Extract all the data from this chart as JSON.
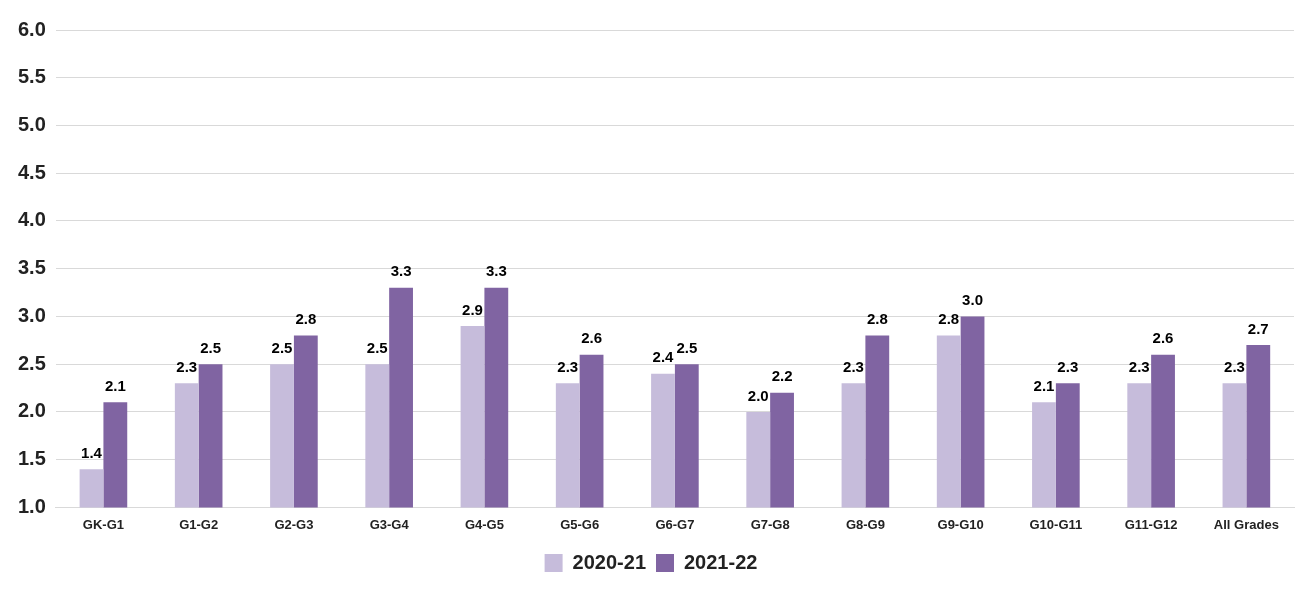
{
  "chart_data": {
    "type": "bar",
    "categories": [
      "GK-G1",
      "G1-G2",
      "G2-G3",
      "G3-G4",
      "G4-G5",
      "G5-G6",
      "G6-G7",
      "G7-G8",
      "G8-G9",
      "G9-G10",
      "G10-G11",
      "G11-G12",
      "All Grades"
    ],
    "series": [
      {
        "name": "2020-21",
        "color": "#c6bcdb",
        "values": [
          1.4,
          2.3,
          2.5,
          2.5,
          2.9,
          2.3,
          2.4,
          2.0,
          2.3,
          2.8,
          2.1,
          2.3,
          2.3
        ],
        "value_labels": [
          "1.4",
          "2.3",
          "2.5",
          "2.5",
          "2.9",
          "2.3",
          "2.4",
          "2.0",
          "2.3",
          "2.8",
          "2.1",
          "2.3",
          "2.3"
        ]
      },
      {
        "name": "2021-22",
        "color": "#8064a2",
        "values": [
          2.1,
          2.5,
          2.8,
          3.3,
          3.3,
          2.6,
          2.5,
          2.2,
          2.8,
          3.0,
          2.3,
          2.6,
          2.7
        ],
        "value_labels": [
          "2.1",
          "2.5",
          "2.8",
          "3.3",
          "3.3",
          "2.6",
          "2.5",
          "2.2",
          "2.8",
          "3.0",
          "2.3",
          "2.6",
          "2.7"
        ]
      }
    ],
    "ylim": [
      1,
      6
    ],
    "yticks": [
      {
        "value": 1,
        "label": "1.0"
      },
      {
        "value": 1.5,
        "label": "1.5"
      },
      {
        "value": 2,
        "label": "2.0"
      },
      {
        "value": 2.5,
        "label": "2.5"
      },
      {
        "value": 3,
        "label": "3.0"
      },
      {
        "value": 3.5,
        "label": "3.5"
      },
      {
        "value": 4,
        "label": "4.0"
      },
      {
        "value": 4.5,
        "label": "4.5"
      },
      {
        "value": 5,
        "label": "5.0"
      },
      {
        "value": 5.5,
        "label": "5.5"
      },
      {
        "value": 6,
        "label": "6.0"
      }
    ],
    "grid": "y",
    "legend": "bottom"
  }
}
